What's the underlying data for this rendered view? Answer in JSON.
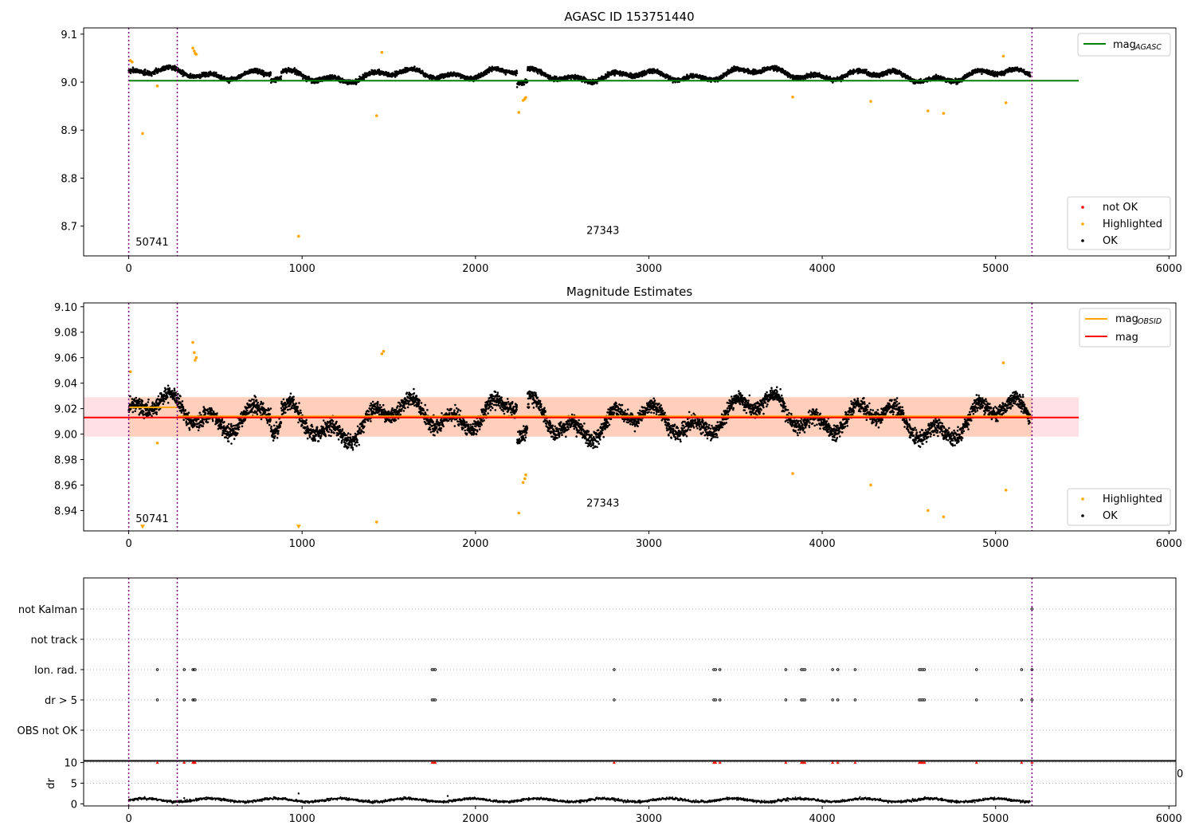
{
  "figure": {
    "width": 1500,
    "height": 1050
  },
  "chart_data": [
    {
      "id": "panel1",
      "type": "scatter",
      "title": "AGASC ID 153751440",
      "xlabel": "",
      "ylabel": "",
      "xlim": [
        -260,
        6040
      ],
      "ylim": [
        8.638,
        9.113
      ],
      "xticks": [
        0,
        1000,
        2000,
        3000,
        4000,
        5000,
        6000
      ],
      "yticks": [
        8.7,
        8.8,
        8.9,
        9.0,
        9.1
      ],
      "ytick_labels": [
        "8.7",
        "8.8",
        "8.9",
        "9.0",
        "9.1"
      ],
      "vlines": [
        0,
        280,
        5210
      ],
      "obsid_labels": [
        {
          "text": "50741",
          "x": 40,
          "y": 8.66
        },
        {
          "text": "27343",
          "x": 2640,
          "y": 8.684
        }
      ],
      "ref_lines": [
        {
          "name": "mag_AGASC",
          "label": "mag",
          "sub": "AGASC",
          "y": 9.003,
          "x": [
            0,
            5480
          ],
          "color": "#008000"
        }
      ],
      "baseline": {
        "mean": 9.015,
        "noise": 0.006
      },
      "highlighted": [
        [
          80,
          8.893
        ],
        [
          165,
          8.992
        ],
        [
          370,
          9.071
        ],
        [
          378,
          9.065
        ],
        [
          383,
          9.06
        ],
        [
          390,
          9.058
        ],
        [
          980,
          8.679
        ],
        [
          1430,
          8.93
        ],
        [
          1460,
          9.062
        ],
        [
          2250,
          8.937
        ],
        [
          2275,
          8.962
        ],
        [
          2285,
          8.965
        ],
        [
          2290,
          8.968
        ],
        [
          3830,
          8.969
        ],
        [
          4280,
          8.96
        ],
        [
          4610,
          8.94
        ],
        [
          4700,
          8.935
        ],
        [
          5045,
          9.054
        ],
        [
          5060,
          8.957
        ],
        [
          10,
          9.045
        ],
        [
          20,
          9.042
        ]
      ],
      "legend_position": "lower-right",
      "legend": [
        {
          "label": "not OK",
          "color": "#ff0000"
        },
        {
          "label": "Highlighted",
          "color": "#ffa500"
        },
        {
          "label": "OK",
          "color": "#000000"
        }
      ]
    },
    {
      "id": "panel2",
      "type": "scatter",
      "title": "Magnitude Estimates",
      "xlabel": "",
      "ylabel": "",
      "xlim": [
        -260,
        6040
      ],
      "ylim": [
        8.924,
        9.103
      ],
      "xticks": [
        0,
        1000,
        2000,
        3000,
        4000,
        5000,
        6000
      ],
      "yticks": [
        8.94,
        8.96,
        8.98,
        9.0,
        9.02,
        9.04,
        9.06,
        9.08,
        9.1
      ],
      "ytick_labels": [
        "8.94",
        "8.96",
        "8.98",
        "9.00",
        "9.02",
        "9.04",
        "9.06",
        "9.08",
        "9.10"
      ],
      "vlines": [
        0,
        280,
        5210
      ],
      "obsid_labels": [
        {
          "text": "50741",
          "x": 40,
          "y": 8.931
        },
        {
          "text": "27343",
          "x": 2640,
          "y": 8.943
        }
      ],
      "band": {
        "y0": 8.998,
        "y1": 9.029,
        "x": [
          -260,
          5480
        ]
      },
      "band_inner": {
        "y0": 8.998,
        "y1": 9.029,
        "x": [
          0,
          5210
        ]
      },
      "ref_lines": [
        {
          "name": "mag_OBSID_1",
          "label": "mag",
          "sub": "OBSID",
          "y": 9.021,
          "x": [
            0,
            280
          ],
          "color": "#ffa500"
        },
        {
          "name": "mag_OBSID_2",
          "label": "mag",
          "sub": "OBSID",
          "y": 9.014,
          "x": [
            280,
            5210
          ],
          "color": "#ffa500"
        },
        {
          "name": "mag",
          "label": "mag",
          "y": 9.013,
          "x": [
            -260,
            5480
          ],
          "color": "#ff0000"
        }
      ],
      "baseline": {
        "mean": 9.013,
        "noise": 0.008
      },
      "highlighted": [
        [
          10,
          9.049
        ],
        [
          165,
          8.993
        ],
        [
          370,
          9.072
        ],
        [
          378,
          9.064
        ],
        [
          383,
          9.058
        ],
        [
          390,
          9.06
        ],
        [
          1430,
          8.931
        ],
        [
          1460,
          9.063
        ],
        [
          1470,
          9.065
        ],
        [
          2250,
          8.938
        ],
        [
          2275,
          8.962
        ],
        [
          2285,
          8.965
        ],
        [
          2290,
          8.968
        ],
        [
          3830,
          8.969
        ],
        [
          4280,
          8.96
        ],
        [
          4610,
          8.94
        ],
        [
          4700,
          8.935
        ],
        [
          5045,
          9.056
        ],
        [
          5060,
          8.956
        ]
      ],
      "down_triangles": [
        [
          80,
          8.927
        ],
        [
          980,
          8.927
        ]
      ],
      "legend_top": [
        {
          "label": "mag",
          "sub": "OBSID",
          "color": "#ffa500"
        },
        {
          "label": "mag",
          "sub": "",
          "color": "#ff0000"
        }
      ],
      "legend_bottom": [
        {
          "label": "Highlighted",
          "color": "#ffa500"
        },
        {
          "label": "OK",
          "color": "#000000"
        }
      ]
    },
    {
      "id": "panel3",
      "type": "scatter",
      "title": "",
      "xlabel": "",
      "ylabel": "",
      "xlim": [
        -260,
        6040
      ],
      "flags": [
        "not Kalman",
        "not track",
        "Ion. rad.",
        "dr > 5",
        "OBS not OK"
      ],
      "vlines": [
        0,
        280,
        5210
      ],
      "flag_points": {
        "not Kalman": [
          5210
        ],
        "not track": [],
        "Ion. rad.": [
          165,
          320,
          370,
          378,
          383,
          1750,
          1760,
          1768,
          2800,
          3375,
          3385,
          3410,
          3790,
          3880,
          3890,
          3900,
          4060,
          4090,
          4190,
          4560,
          4570,
          4580,
          4590,
          4890,
          5150,
          5210
        ],
        "dr > 5": [
          165,
          320,
          370,
          378,
          383,
          1750,
          1760,
          1768,
          2800,
          3375,
          3385,
          3410,
          3790,
          3880,
          3890,
          3900,
          4060,
          4090,
          4190,
          4560,
          4570,
          4580,
          4590,
          4890,
          5150,
          5210
        ],
        "OBS not OK": []
      }
    },
    {
      "id": "panel4",
      "type": "line",
      "title": "",
      "xlabel": "",
      "ylabel": "dr",
      "xlim": [
        -260,
        6040
      ],
      "ylim": [
        -0.5,
        10.5
      ],
      "yticks": [
        0,
        5,
        10
      ],
      "ytick_labels": [
        "0",
        "5",
        "10"
      ],
      "xticks": [
        0,
        1000,
        2000,
        3000,
        4000,
        5000,
        6000
      ],
      "vlines": [
        0,
        280,
        5210
      ],
      "threshold_points": [
        165,
        320,
        370,
        378,
        383,
        1750,
        1760,
        1768,
        2800,
        3375,
        3385,
        3410,
        3790,
        3880,
        3890,
        3900,
        4060,
        4090,
        4190,
        4560,
        4570,
        4580,
        4590,
        4890,
        5150,
        5210
      ],
      "baseline": {
        "mean": 0.9,
        "noise": 0.35
      },
      "spikes": [
        [
          980,
          2.5
        ],
        [
          1840,
          1.9
        ],
        [
          320,
          1.4
        ]
      ],
      "stray_tick_label": "0"
    }
  ]
}
